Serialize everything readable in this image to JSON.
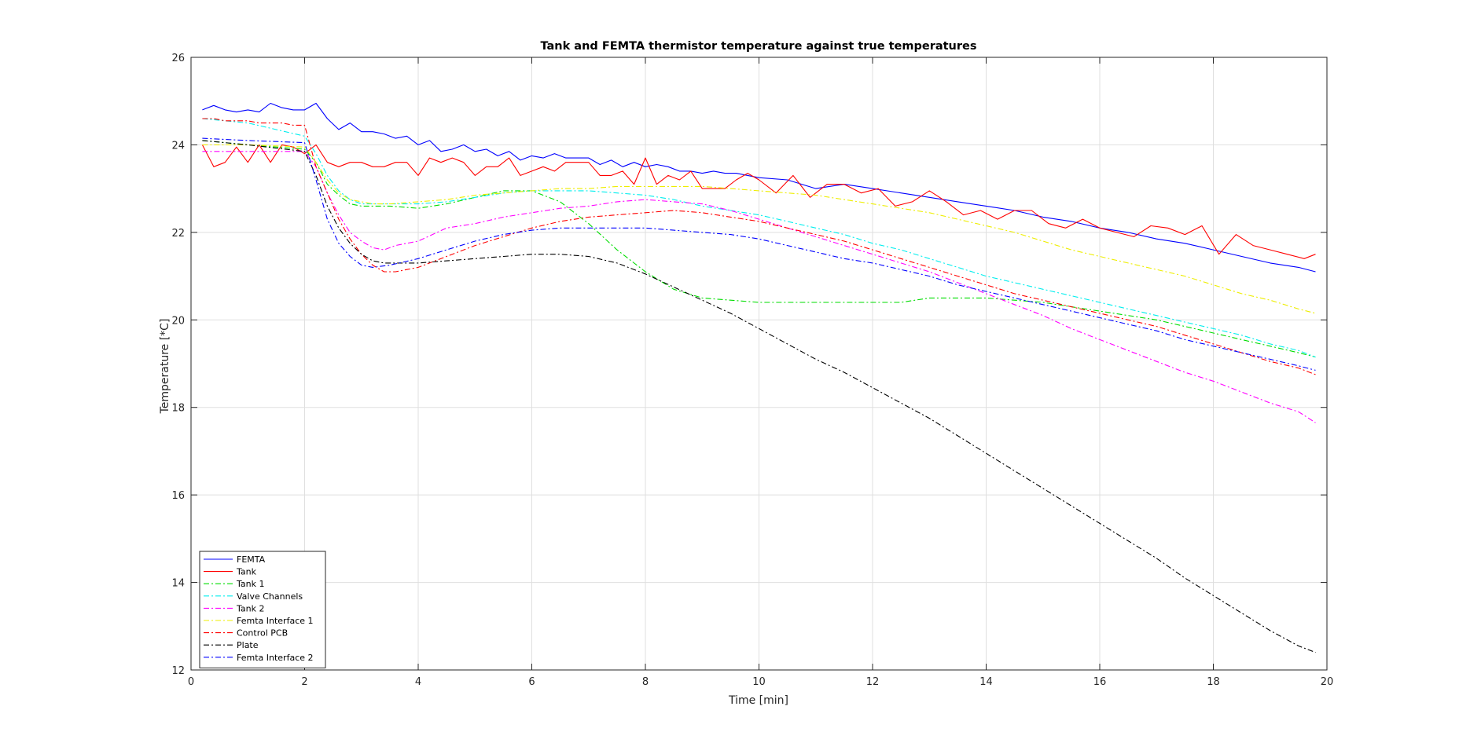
{
  "chart_data": {
    "type": "line",
    "title": "Tank and FEMTA thermistor temperature against true temperatures",
    "xlabel": "Time [min]",
    "ylabel": "Temperature [*C]",
    "xlim": [
      0,
      20
    ],
    "ylim": [
      12,
      26
    ],
    "xticks": [
      "0",
      "2",
      "4",
      "6",
      "8",
      "10",
      "12",
      "14",
      "16",
      "18",
      "20"
    ],
    "yticks": [
      "12",
      "14",
      "16",
      "18",
      "20",
      "22",
      "24",
      "26"
    ],
    "grid": true,
    "legend_position": "bottom-left",
    "series": [
      {
        "name": "FEMTA",
        "color": "#0000ff",
        "dash": "solid",
        "x": [
          0.2,
          0.4,
          0.6,
          0.8,
          1.0,
          1.2,
          1.4,
          1.6,
          1.8,
          2.0,
          2.2,
          2.4,
          2.6,
          2.8,
          3.0,
          3.2,
          3.4,
          3.6,
          3.8,
          4.0,
          4.2,
          4.4,
          4.6,
          4.8,
          5.0,
          5.2,
          5.4,
          5.6,
          5.8,
          6.0,
          6.2,
          6.4,
          6.6,
          6.8,
          7.0,
          7.2,
          7.4,
          7.6,
          7.8,
          8.0,
          8.2,
          8.4,
          8.6,
          8.8,
          9.0,
          9.2,
          9.4,
          9.6,
          9.8,
          10.0,
          10.5,
          11.0,
          11.5,
          12.0,
          12.5,
          13.0,
          13.5,
          14.0,
          14.5,
          15.0,
          15.5,
          16.0,
          16.5,
          17.0,
          17.5,
          18.0,
          18.5,
          19.0,
          19.5,
          19.8
        ],
        "y": [
          24.8,
          24.9,
          24.8,
          24.75,
          24.8,
          24.75,
          24.95,
          24.85,
          24.8,
          24.8,
          24.95,
          24.6,
          24.35,
          24.5,
          24.3,
          24.3,
          24.25,
          24.15,
          24.2,
          24.0,
          24.1,
          23.85,
          23.9,
          24.0,
          23.85,
          23.9,
          23.75,
          23.85,
          23.65,
          23.75,
          23.7,
          23.8,
          23.7,
          23.7,
          23.7,
          23.55,
          23.65,
          23.5,
          23.6,
          23.5,
          23.55,
          23.5,
          23.4,
          23.4,
          23.35,
          23.4,
          23.35,
          23.35,
          23.3,
          23.25,
          23.2,
          23.0,
          23.1,
          23.0,
          22.9,
          22.8,
          22.7,
          22.6,
          22.5,
          22.35,
          22.25,
          22.1,
          22.0,
          21.85,
          21.75,
          21.6,
          21.45,
          21.3,
          21.2,
          21.1
        ]
      },
      {
        "name": "Tank",
        "color": "#ff0000",
        "dash": "solid",
        "x": [
          0.2,
          0.4,
          0.6,
          0.8,
          1.0,
          1.2,
          1.4,
          1.6,
          1.8,
          2.0,
          2.2,
          2.4,
          2.6,
          2.8,
          3.0,
          3.2,
          3.4,
          3.6,
          3.8,
          4.0,
          4.2,
          4.4,
          4.6,
          4.8,
          5.0,
          5.2,
          5.4,
          5.6,
          5.8,
          6.0,
          6.2,
          6.4,
          6.6,
          6.8,
          7.0,
          7.2,
          7.4,
          7.6,
          7.8,
          8.0,
          8.2,
          8.4,
          8.6,
          8.8,
          9.0,
          9.2,
          9.4,
          9.6,
          9.8,
          10.0,
          10.3,
          10.6,
          10.9,
          11.2,
          11.5,
          11.8,
          12.1,
          12.4,
          12.7,
          13.0,
          13.3,
          13.6,
          13.9,
          14.2,
          14.5,
          14.8,
          15.1,
          15.4,
          15.7,
          16.0,
          16.3,
          16.6,
          16.9,
          17.2,
          17.5,
          17.8,
          18.1,
          18.4,
          18.7,
          19.0,
          19.3,
          19.6,
          19.8
        ],
        "y": [
          24.0,
          23.5,
          23.6,
          23.95,
          23.6,
          24.0,
          23.6,
          24.0,
          23.95,
          23.8,
          24.0,
          23.6,
          23.5,
          23.6,
          23.6,
          23.5,
          23.5,
          23.6,
          23.6,
          23.3,
          23.7,
          23.6,
          23.7,
          23.6,
          23.3,
          23.5,
          23.5,
          23.7,
          23.3,
          23.4,
          23.5,
          23.4,
          23.6,
          23.6,
          23.6,
          23.3,
          23.3,
          23.4,
          23.1,
          23.7,
          23.1,
          23.3,
          23.2,
          23.4,
          23.0,
          23.0,
          23.0,
          23.2,
          23.35,
          23.2,
          22.9,
          23.3,
          22.8,
          23.1,
          23.1,
          22.9,
          23.0,
          22.6,
          22.7,
          22.95,
          22.7,
          22.4,
          22.5,
          22.3,
          22.5,
          22.5,
          22.2,
          22.1,
          22.3,
          22.1,
          22.0,
          21.9,
          22.15,
          22.1,
          21.95,
          22.15,
          21.5,
          21.95,
          21.7,
          21.6,
          21.5,
          21.4,
          21.5
        ]
      },
      {
        "name": "Tank 1",
        "color": "#00dd00",
        "dash": "dashdot",
        "x": [
          0.2,
          1.0,
          2.0,
          2.2,
          2.4,
          2.6,
          2.8,
          3.0,
          3.2,
          3.5,
          4.0,
          4.5,
          5.0,
          5.5,
          6.0,
          6.5,
          7.0,
          7.5,
          8.0,
          8.5,
          9.0,
          9.5,
          10.0,
          10.5,
          11.0,
          11.5,
          12.0,
          12.5,
          13.0,
          13.5,
          14.0,
          14.5,
          15.0,
          15.5,
          16.0,
          16.5,
          17.0,
          17.5,
          18.0,
          18.5,
          19.0,
          19.5,
          19.8
        ],
        "y": [
          24.1,
          24.0,
          23.9,
          23.6,
          23.1,
          22.85,
          22.65,
          22.6,
          22.6,
          22.6,
          22.55,
          22.65,
          22.8,
          22.95,
          22.95,
          22.7,
          22.2,
          21.6,
          21.1,
          20.7,
          20.5,
          20.45,
          20.4,
          20.4,
          20.4,
          20.4,
          20.4,
          20.4,
          20.5,
          20.5,
          20.5,
          20.45,
          20.4,
          20.3,
          20.2,
          20.1,
          20.0,
          19.85,
          19.7,
          19.55,
          19.4,
          19.25,
          19.15
        ]
      },
      {
        "name": "Valve Channels",
        "color": "#00eeee",
        "dash": "dashdot",
        "x": [
          0.2,
          1.0,
          2.0,
          2.2,
          2.4,
          2.6,
          2.8,
          3.0,
          3.2,
          3.5,
          4.0,
          4.5,
          5.0,
          5.5,
          6.0,
          6.5,
          7.0,
          7.5,
          8.0,
          8.5,
          9.0,
          9.5,
          10.0,
          10.5,
          11.0,
          11.5,
          12.0,
          12.5,
          13.0,
          13.5,
          14.0,
          14.5,
          15.0,
          15.5,
          16.0,
          16.5,
          17.0,
          17.5,
          18.0,
          18.5,
          19.0,
          19.5,
          19.8
        ],
        "y": [
          24.6,
          24.5,
          24.2,
          23.8,
          23.3,
          22.95,
          22.75,
          22.65,
          22.65,
          22.65,
          22.65,
          22.7,
          22.8,
          22.9,
          22.95,
          22.95,
          22.95,
          22.9,
          22.85,
          22.75,
          22.6,
          22.5,
          22.4,
          22.25,
          22.1,
          21.95,
          21.75,
          21.6,
          21.4,
          21.2,
          21.0,
          20.85,
          20.7,
          20.55,
          20.4,
          20.25,
          20.1,
          19.95,
          19.8,
          19.65,
          19.45,
          19.3,
          19.15
        ]
      },
      {
        "name": "Tank 2",
        "color": "#ff00ff",
        "dash": "dashdot",
        "x": [
          0.2,
          1.0,
          2.0,
          2.2,
          2.4,
          2.6,
          2.8,
          3.0,
          3.2,
          3.4,
          3.6,
          3.8,
          4.0,
          4.5,
          5.0,
          5.5,
          6.0,
          6.5,
          7.0,
          7.5,
          8.0,
          8.5,
          9.0,
          9.5,
          10.0,
          10.5,
          11.0,
          11.5,
          12.0,
          12.5,
          13.0,
          13.5,
          14.0,
          14.5,
          15.0,
          15.5,
          16.0,
          16.5,
          17.0,
          17.5,
          18.0,
          18.5,
          19.0,
          19.5,
          19.8
        ],
        "y": [
          23.85,
          23.85,
          23.85,
          23.5,
          22.9,
          22.4,
          22.0,
          21.8,
          21.65,
          21.6,
          21.7,
          21.75,
          21.8,
          22.1,
          22.2,
          22.35,
          22.45,
          22.55,
          22.6,
          22.7,
          22.75,
          22.7,
          22.65,
          22.5,
          22.3,
          22.1,
          21.9,
          21.7,
          21.5,
          21.3,
          21.1,
          20.85,
          20.6,
          20.35,
          20.1,
          19.8,
          19.55,
          19.3,
          19.05,
          18.8,
          18.6,
          18.35,
          18.1,
          17.9,
          17.65
        ]
      },
      {
        "name": "Femta Interface 1",
        "color": "#eeee00",
        "dash": "dashdot",
        "x": [
          0.2,
          1.0,
          2.0,
          2.2,
          2.4,
          2.6,
          2.8,
          3.0,
          3.2,
          3.5,
          4.0,
          4.5,
          5.0,
          5.5,
          6.0,
          6.5,
          7.0,
          7.5,
          8.0,
          8.5,
          9.0,
          9.5,
          10.0,
          10.5,
          11.0,
          11.5,
          12.0,
          12.5,
          13.0,
          13.5,
          14.0,
          14.5,
          15.0,
          15.5,
          16.0,
          16.5,
          17.0,
          17.5,
          18.0,
          18.5,
          19.0,
          19.5,
          19.8
        ],
        "y": [
          24.0,
          24.0,
          23.95,
          23.6,
          23.2,
          22.9,
          22.75,
          22.7,
          22.65,
          22.65,
          22.7,
          22.75,
          22.85,
          22.9,
          22.95,
          23.0,
          23.0,
          23.05,
          23.05,
          23.05,
          23.05,
          23.0,
          22.95,
          22.9,
          22.85,
          22.75,
          22.65,
          22.55,
          22.45,
          22.3,
          22.15,
          22.0,
          21.8,
          21.6,
          21.45,
          21.3,
          21.15,
          21.0,
          20.8,
          20.6,
          20.45,
          20.25,
          20.15
        ]
      },
      {
        "name": "Control PCB",
        "color": "#ff0000",
        "dash": "dashdot",
        "x": [
          0.2,
          0.4,
          0.6,
          0.8,
          1.0,
          1.2,
          1.4,
          1.6,
          1.8,
          2.0,
          2.2,
          2.4,
          2.6,
          2.8,
          3.0,
          3.2,
          3.4,
          3.6,
          3.8,
          4.0,
          4.5,
          5.0,
          5.5,
          6.0,
          6.5,
          7.0,
          7.5,
          8.0,
          8.5,
          9.0,
          9.5,
          10.0,
          10.5,
          11.0,
          11.5,
          12.0,
          12.5,
          13.0,
          13.5,
          14.0,
          14.5,
          15.0,
          15.5,
          16.0,
          16.5,
          17.0,
          17.5,
          18.0,
          18.5,
          19.0,
          19.5,
          19.8
        ],
        "y": [
          24.6,
          24.6,
          24.55,
          24.55,
          24.55,
          24.5,
          24.5,
          24.5,
          24.45,
          24.45,
          23.5,
          22.9,
          22.3,
          21.85,
          21.5,
          21.25,
          21.1,
          21.1,
          21.15,
          21.2,
          21.45,
          21.7,
          21.9,
          22.1,
          22.25,
          22.35,
          22.4,
          22.45,
          22.5,
          22.45,
          22.35,
          22.25,
          22.1,
          21.95,
          21.8,
          21.6,
          21.4,
          21.2,
          21.0,
          20.8,
          20.6,
          20.45,
          20.3,
          20.15,
          20.0,
          19.85,
          19.65,
          19.45,
          19.25,
          19.05,
          18.9,
          18.75
        ]
      },
      {
        "name": "Plate",
        "color": "#000000",
        "dash": "dashdot",
        "x": [
          0.2,
          1.0,
          2.0,
          2.2,
          2.4,
          2.6,
          2.8,
          3.0,
          3.2,
          3.4,
          3.6,
          3.8,
          4.0,
          4.5,
          5.0,
          5.5,
          6.0,
          6.5,
          7.0,
          7.5,
          8.0,
          8.5,
          9.0,
          9.5,
          10.0,
          10.5,
          11.0,
          11.5,
          12.0,
          12.5,
          13.0,
          13.5,
          14.0,
          14.5,
          15.0,
          15.5,
          16.0,
          16.5,
          17.0,
          17.5,
          18.0,
          18.5,
          19.0,
          19.5,
          19.8
        ],
        "y": [
          24.1,
          24.0,
          23.85,
          23.3,
          22.6,
          22.1,
          21.75,
          21.5,
          21.35,
          21.3,
          21.3,
          21.3,
          21.3,
          21.35,
          21.4,
          21.45,
          21.5,
          21.5,
          21.45,
          21.3,
          21.05,
          20.75,
          20.45,
          20.15,
          19.8,
          19.45,
          19.1,
          18.8,
          18.45,
          18.1,
          17.75,
          17.35,
          16.95,
          16.55,
          16.15,
          15.75,
          15.35,
          14.95,
          14.55,
          14.1,
          13.7,
          13.3,
          12.9,
          12.55,
          12.4
        ]
      },
      {
        "name": "Femta Interface 2",
        "color": "#0000ff",
        "dash": "dashdot",
        "x": [
          0.2,
          1.0,
          2.0,
          2.2,
          2.4,
          2.6,
          2.8,
          3.0,
          3.2,
          3.5,
          4.0,
          4.5,
          5.0,
          5.5,
          6.0,
          6.5,
          7.0,
          7.5,
          8.0,
          8.5,
          9.0,
          9.5,
          10.0,
          10.5,
          11.0,
          11.5,
          12.0,
          12.5,
          13.0,
          13.5,
          14.0,
          14.5,
          15.0,
          15.5,
          16.0,
          16.5,
          17.0,
          17.5,
          18.0,
          18.5,
          19.0,
          19.5,
          19.8
        ],
        "y": [
          24.15,
          24.1,
          24.05,
          23.2,
          22.3,
          21.75,
          21.45,
          21.25,
          21.2,
          21.25,
          21.4,
          21.6,
          21.8,
          21.95,
          22.05,
          22.1,
          22.1,
          22.1,
          22.1,
          22.05,
          22.0,
          21.95,
          21.85,
          21.7,
          21.55,
          21.4,
          21.3,
          21.15,
          21.0,
          20.8,
          20.65,
          20.5,
          20.35,
          20.2,
          20.05,
          19.9,
          19.75,
          19.55,
          19.4,
          19.25,
          19.1,
          18.95,
          18.85
        ]
      }
    ]
  }
}
